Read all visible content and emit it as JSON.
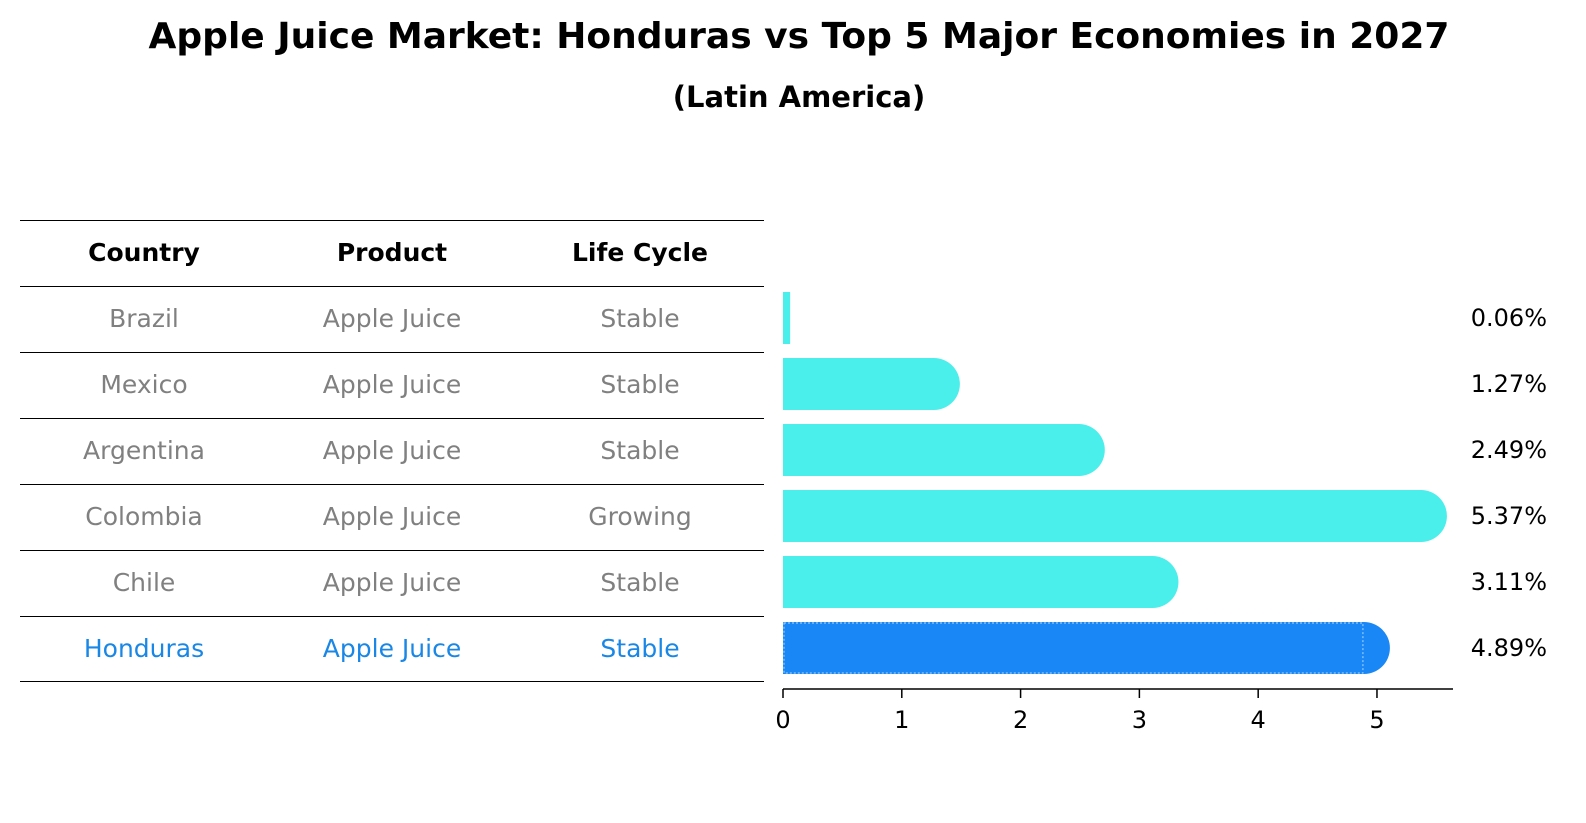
{
  "title": "Apple Juice Market: Honduras vs Top 5 Major Economies in 2027",
  "subtitle": "(Latin America)",
  "table": {
    "headers": [
      "Country",
      "Product",
      "Life Cycle"
    ],
    "rows": [
      {
        "country": "Brazil",
        "product": "Apple Juice",
        "life_cycle": "Stable"
      },
      {
        "country": "Mexico",
        "product": "Apple Juice",
        "life_cycle": "Stable"
      },
      {
        "country": "Argentina",
        "product": "Apple Juice",
        "life_cycle": "Stable"
      },
      {
        "country": "Colombia",
        "product": "Apple Juice",
        "life_cycle": "Growing"
      },
      {
        "country": "Chile",
        "product": "Apple Juice",
        "life_cycle": "Stable"
      },
      {
        "country": "Honduras",
        "product": "Apple Juice",
        "life_cycle": "Stable"
      }
    ]
  },
  "colors": {
    "bar": "#4aeeea",
    "highlight": "#1987f5",
    "highlight_text": "#1987e6",
    "dim_text": "#808080"
  },
  "chart_data": {
    "type": "bar",
    "orientation": "horizontal",
    "categories": [
      "Brazil",
      "Mexico",
      "Argentina",
      "Colombia",
      "Chile",
      "Honduras"
    ],
    "values": [
      0.06,
      1.27,
      2.49,
      5.37,
      3.11,
      4.89
    ],
    "value_labels": [
      "0.06%",
      "1.27%",
      "2.49%",
      "5.37%",
      "3.11%",
      "4.89%"
    ],
    "highlight": "Honduras",
    "xlim": [
      0,
      5.64
    ],
    "xticks": [
      0,
      1,
      2,
      3,
      4,
      5
    ],
    "xtick_labels": [
      "0",
      "1",
      "2",
      "3",
      "4",
      "5"
    ],
    "xlabel": "",
    "ylabel": "",
    "grid": false
  }
}
